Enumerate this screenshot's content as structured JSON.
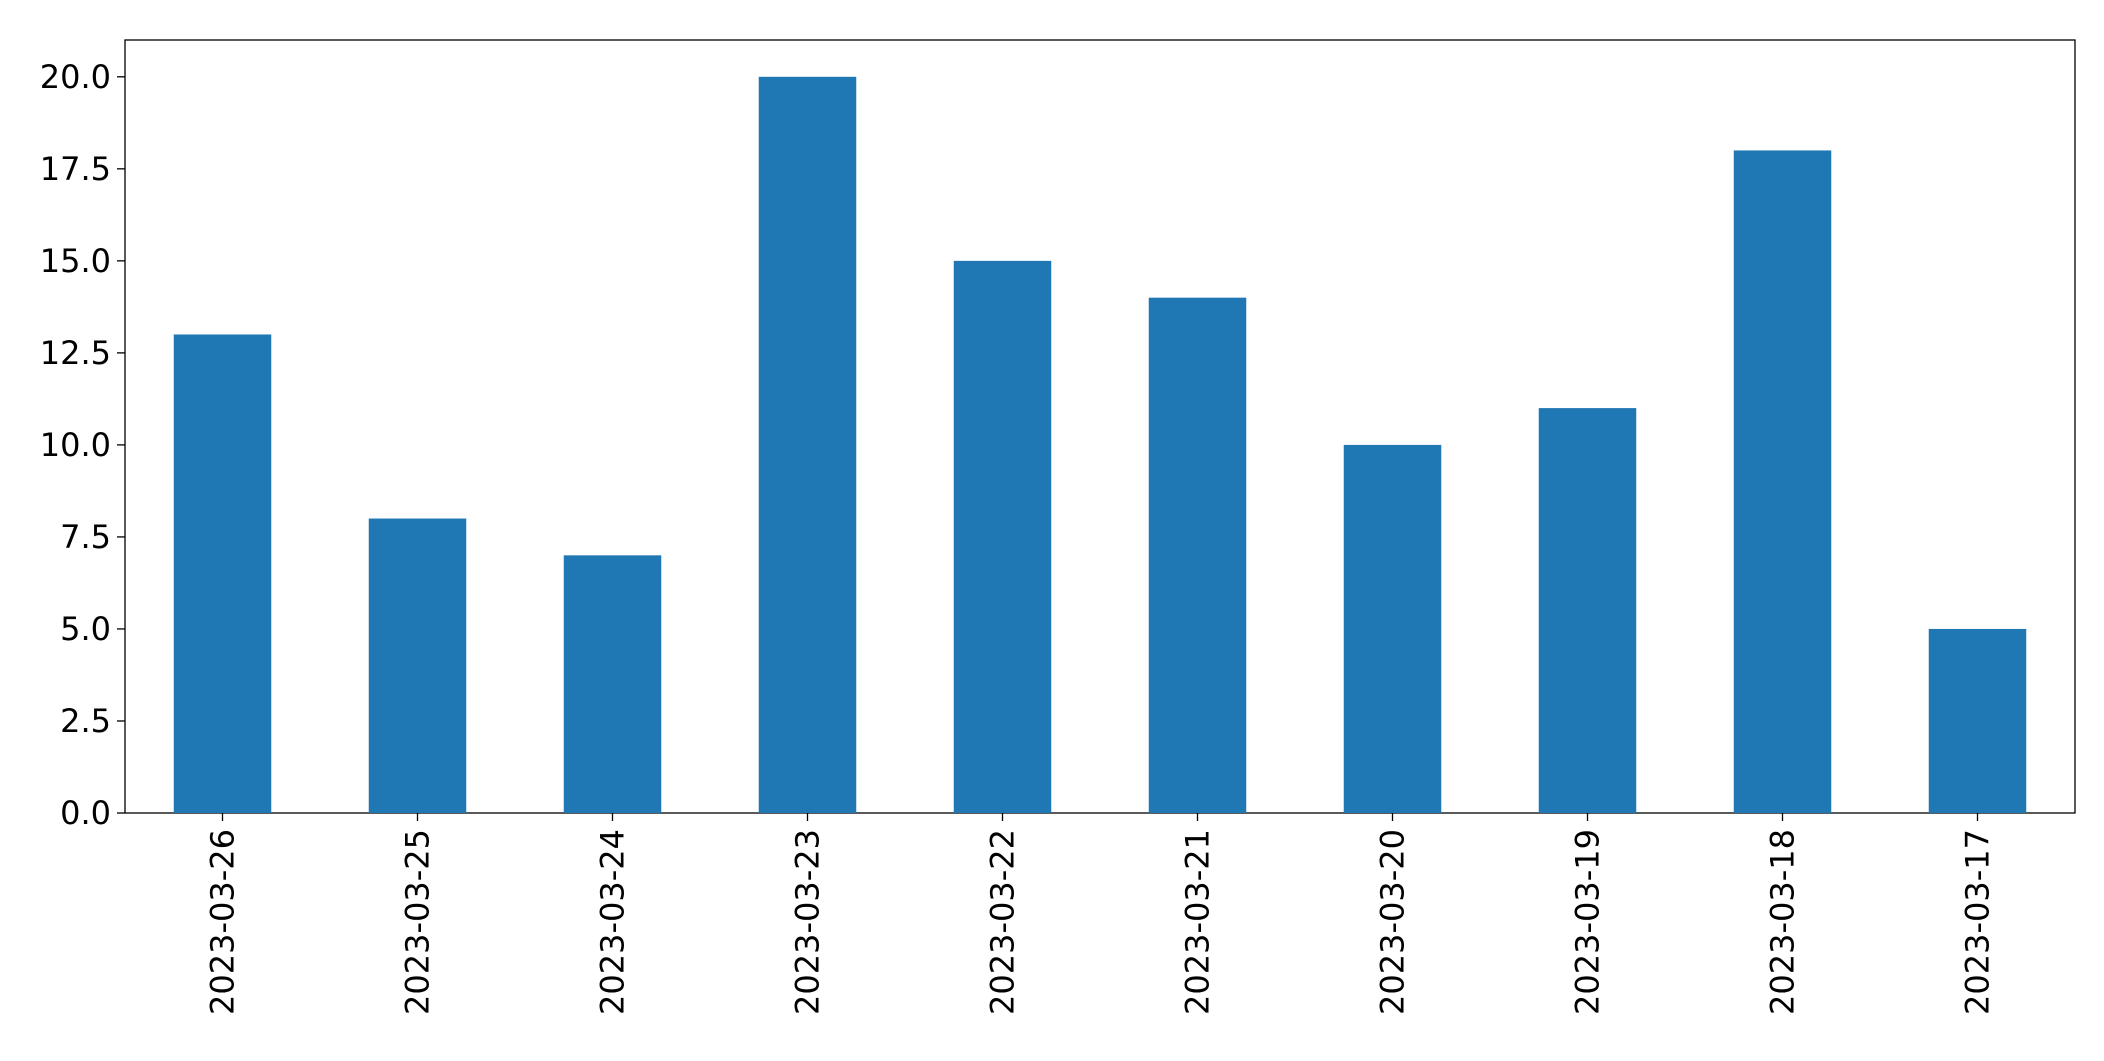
{
  "chart_data": {
    "type": "bar",
    "categories": [
      "2023-03-26",
      "2023-03-25",
      "2023-03-24",
      "2023-03-23",
      "2023-03-22",
      "2023-03-21",
      "2023-03-20",
      "2023-03-19",
      "2023-03-18",
      "2023-03-17"
    ],
    "values": [
      13,
      8,
      7,
      20,
      15,
      14,
      10,
      11,
      18,
      5
    ],
    "color": "#1f77b4",
    "ylim": [
      0,
      21
    ],
    "yticks": [
      {
        "value": 0,
        "label": "0.0"
      },
      2.5,
      {
        "value": 5,
        "label": "5.0"
      },
      7.5,
      {
        "value": 10,
        "label": "10.0"
      },
      12.5,
      {
        "value": 15,
        "label": "15.0"
      },
      17.5,
      {
        "value": 20,
        "label": "20.0"
      }
    ],
    "grid": false
  }
}
